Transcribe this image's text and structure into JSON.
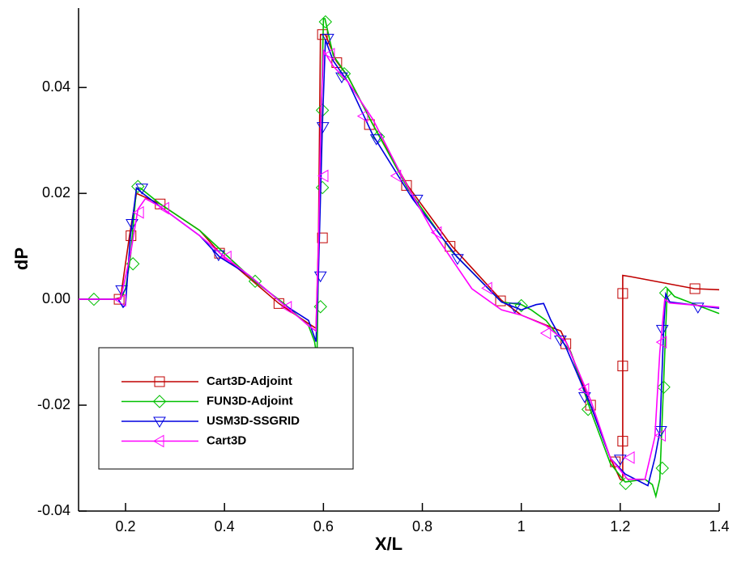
{
  "chart_data": {
    "type": "line",
    "xlabel": "X/L",
    "ylabel": "dP",
    "xlim": [
      0.105,
      1.4
    ],
    "ylim": [
      -0.04,
      0.055
    ],
    "xticks": [
      0.2,
      0.4,
      0.6,
      0.8,
      1,
      1.2,
      1.4
    ],
    "yticks": [
      -0.04,
      -0.02,
      {
        "value": 0,
        "label": "0.00"
      },
      0.02,
      0.04
    ],
    "legend": "lower-left",
    "series": [
      {
        "name": "Cart3D-Adjoint",
        "color": "#c00000",
        "marker": "square",
        "x": [
          0.105,
          0.175,
          0.19,
          0.208,
          0.222,
          0.27,
          0.35,
          0.39,
          0.45,
          0.51,
          0.57,
          0.585,
          0.59,
          0.594,
          0.604,
          0.626,
          0.65,
          0.7,
          0.77,
          0.86,
          0.96,
          1.0,
          1.08,
          1.1,
          1.14,
          1.18,
          1.2,
          1.205,
          1.205,
          1.22,
          1.35,
          1.4
        ],
        "values": [
          0,
          0,
          0.0003,
          0.012,
          0.02,
          0.018,
          0.013,
          0.0088,
          0.004,
          -0.0008,
          -0.0046,
          -0.0055,
          0.011,
          0.05,
          0.05,
          0.045,
          0.042,
          0.033,
          0.0215,
          0.01,
          -0.0002,
          -0.003,
          -0.006,
          -0.01,
          -0.02,
          -0.03,
          -0.034,
          -0.0342,
          0.0045,
          0.0043,
          0.002,
          0.0018
        ],
        "marker_x": [
          0.187,
          0.211,
          0.27,
          0.39,
          0.51,
          0.598,
          0.598,
          0.627,
          0.693,
          0.768,
          0.856,
          0.958,
          1.09,
          1.14,
          1.19,
          1.205,
          1.205,
          1.205,
          1.351
        ],
        "marker_values": [
          0,
          0.012,
          0.018,
          0.0087,
          -0.0008,
          0.0116,
          0.05,
          0.0447,
          0.033,
          0.0215,
          0.01,
          -0.0003,
          -0.0084,
          -0.02,
          -0.0307,
          -0.0268,
          -0.0126,
          0.0011,
          0.002
        ]
      },
      {
        "name": "FUN3D-Adjoint",
        "color": "#00c000",
        "marker": "diamond",
        "x": [
          0.105,
          0.19,
          0.2,
          0.21,
          0.222,
          0.23,
          0.27,
          0.35,
          0.46,
          0.52,
          0.57,
          0.582,
          0.587,
          0.592,
          0.6,
          0.603,
          0.62,
          0.65,
          0.7,
          0.77,
          0.86,
          0.96,
          1.0,
          1.02,
          1.05,
          1.1,
          1.14,
          1.18,
          1.21,
          1.25,
          1.265,
          1.272,
          1.28,
          1.288,
          1.295,
          1.31,
          1.4
        ],
        "values": [
          0,
          0,
          0.002,
          0.008,
          0.021,
          0.021,
          0.018,
          0.013,
          0.0035,
          -0.0008,
          -0.005,
          -0.008,
          -0.011,
          0.02,
          0.053,
          0.053,
          0.046,
          0.042,
          0.033,
          0.021,
          0.009,
          -0.0005,
          -0.001,
          -0.002,
          -0.004,
          -0.01,
          -0.021,
          -0.031,
          -0.0345,
          -0.034,
          -0.035,
          -0.0372,
          -0.034,
          -0.015,
          0.002,
          0.0005,
          -0.0027
        ],
        "marker_x": [
          0.136,
          0.215,
          0.225,
          0.462,
          0.594,
          0.598,
          0.598,
          0.604,
          0.642,
          0.711,
          1.0,
          1.135,
          1.211,
          1.285,
          1.288,
          1.292
        ],
        "marker_values": [
          0,
          0.0067,
          0.0213,
          0.0034,
          -0.0014,
          0.0211,
          0.0357,
          0.0524,
          0.0426,
          0.0307,
          -0.0012,
          -0.0208,
          -0.0348,
          -0.0319,
          -0.0166,
          0.0012
        ]
      },
      {
        "name": "USM3D-SSGRID",
        "color": "#0000e0",
        "marker": "triangle-down",
        "x": [
          0.105,
          0.185,
          0.195,
          0.2,
          0.21,
          0.222,
          0.235,
          0.27,
          0.35,
          0.39,
          0.45,
          0.52,
          0.57,
          0.585,
          0.59,
          0.598,
          0.604,
          0.62,
          0.65,
          0.7,
          0.78,
          0.87,
          0.96,
          1.0,
          1.03,
          1.045,
          1.06,
          1.09,
          1.14,
          1.18,
          1.21,
          1.256,
          1.27,
          1.28,
          1.288,
          1.292,
          1.3,
          1.4
        ],
        "values": [
          0,
          0,
          -0.0015,
          -0.001,
          0.012,
          0.021,
          0.02,
          0.0175,
          0.012,
          0.008,
          0.0045,
          -0.001,
          -0.004,
          -0.008,
          0.005,
          0.033,
          0.049,
          0.045,
          0.041,
          0.031,
          0.019,
          0.008,
          -0.0005,
          -0.002,
          -0.001,
          -0.0008,
          -0.004,
          -0.009,
          -0.02,
          -0.03,
          -0.033,
          -0.0352,
          -0.03,
          -0.025,
          -0.005,
          0.001,
          -0.0005,
          -0.0017
        ],
        "marker_x": [
          0.192,
          0.213,
          0.233,
          0.388,
          0.594,
          0.599,
          0.609,
          0.637,
          0.707,
          0.789,
          0.871,
          0.987,
          1.079,
          1.128,
          1.2,
          1.282,
          1.285,
          1.357
        ],
        "marker_values": [
          0.0018,
          0.0143,
          0.021,
          0.0084,
          0.0044,
          0.0326,
          0.0493,
          0.042,
          0.0303,
          0.0189,
          0.0077,
          -0.0015,
          -0.0077,
          -0.0184,
          -0.0302,
          -0.0248,
          -0.0057,
          -0.0015
        ]
      },
      {
        "name": "Cart3D",
        "color": "#ff00ff",
        "marker": "triangle-left",
        "x": [
          0.105,
          0.19,
          0.21,
          0.225,
          0.24,
          0.27,
          0.35,
          0.4,
          0.45,
          0.52,
          0.57,
          0.585,
          0.59,
          0.595,
          0.6,
          0.62,
          0.65,
          0.7,
          0.76,
          0.82,
          0.9,
          0.96,
          1.0,
          1.05,
          1.09,
          1.14,
          1.18,
          1.215,
          1.25,
          1.27,
          1.28,
          1.29,
          1.3,
          1.4
        ],
        "values": [
          0,
          0,
          0.0085,
          0.017,
          0.019,
          0.0175,
          0.012,
          0.008,
          0.0045,
          -0.001,
          -0.005,
          -0.006,
          0.01,
          0.035,
          0.047,
          0.044,
          0.041,
          0.034,
          0.023,
          0.013,
          0.002,
          -0.002,
          -0.003,
          -0.005,
          -0.008,
          -0.019,
          -0.03,
          -0.034,
          -0.034,
          -0.026,
          -0.01,
          0,
          -0.0007,
          -0.0015
        ],
        "marker_x": [
          0.192,
          0.228,
          0.279,
          0.405,
          0.527,
          0.601,
          0.614,
          0.681,
          0.748,
          0.83,
          0.932,
          1.051,
          1.128,
          1.22,
          1.283,
          1.285
        ],
        "marker_values": [
          -0.0002,
          0.0164,
          0.0172,
          0.008,
          -0.0015,
          0.0233,
          0.0463,
          0.0346,
          0.0233,
          0.0126,
          0.0021,
          -0.0064,
          -0.017,
          -0.0299,
          -0.0257,
          -0.0081
        ]
      }
    ]
  }
}
